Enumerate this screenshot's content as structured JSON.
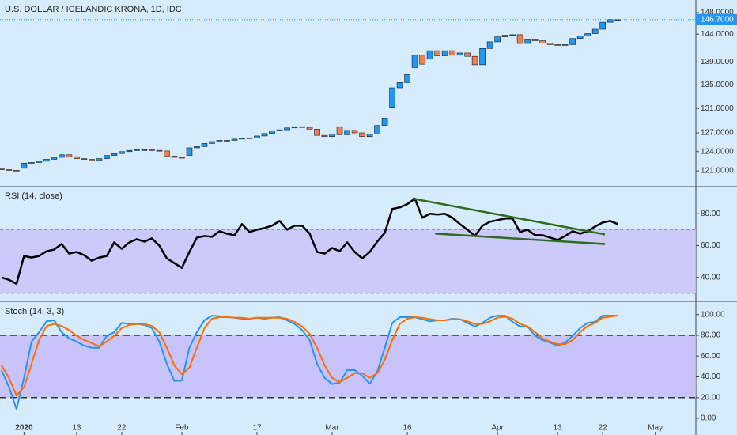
{
  "x_axis": {
    "xlim": [
      -0.2,
      92.4
    ],
    "xticks": [
      {
        "value": 3,
        "label": "2020"
      },
      {
        "value": 10,
        "label": "13"
      },
      {
        "value": 16,
        "label": "22"
      },
      {
        "value": 24,
        "label": "Feb"
      },
      {
        "value": 34,
        "label": "17"
      },
      {
        "value": 44,
        "label": "Mar"
      },
      {
        "value": 54,
        "label": "16"
      },
      {
        "value": 66,
        "label": "Apr"
      },
      {
        "value": 74,
        "label": "13"
      },
      {
        "value": 80,
        "label": "22"
      },
      {
        "value": 87,
        "label": "May"
      }
    ]
  },
  "chart_data": [
    {
      "type": "candlestick",
      "title": "U.S. DOLLAR / ICELANDIC KRONA, 1D, IDC",
      "log_scale": true,
      "ylim": [
        118.6,
        150.4
      ],
      "yticks": [
        {
          "value": 148,
          "label": "148.0000"
        },
        {
          "value": 144,
          "label": "144.0000"
        },
        {
          "value": 139,
          "label": "139.0000"
        },
        {
          "value": 135,
          "label": "135.0000"
        },
        {
          "value": 131,
          "label": "131.0000"
        },
        {
          "value": 127,
          "label": "127.0000"
        },
        {
          "value": 124,
          "label": "124.0000"
        },
        {
          "value": 121,
          "label": "121.0000"
        }
      ],
      "last_price": {
        "value": 146.7,
        "label": "146.7000"
      },
      "up_color": "#2196f3",
      "down_color": "#ef7f55",
      "price_line_color": "#2196f3",
      "open": [
        121.3,
        121.2,
        121.1,
        121.4,
        122.2,
        122.3,
        122.5,
        122.8,
        123.1,
        123.5,
        123.2,
        122.9,
        122.8,
        122.6,
        122.9,
        123.4,
        123.7,
        124.0,
        124.2,
        124.3,
        124.3,
        124.2,
        124.1,
        123.3,
        123.1,
        123.4,
        124.6,
        124.8,
        125.3,
        125.6,
        125.8,
        125.8,
        126.0,
        126.2,
        126.2,
        126.5,
        126.9,
        127.3,
        127.5,
        127.8,
        128.0,
        127.9,
        127.6,
        126.6,
        126.4,
        128.0,
        126.7,
        127.4,
        127.0,
        126.4,
        126.8,
        128.2,
        131.2,
        134.5,
        135.4,
        138.0,
        140.2,
        139.5,
        141.0,
        140.1,
        141.0,
        140.2,
        140.6,
        140.0,
        138.5,
        141.4,
        142.6,
        143.5,
        143.8,
        143.9,
        142.3,
        143.1,
        142.8,
        142.4,
        142.1,
        142.0,
        142.1,
        143.2,
        143.7,
        144.1,
        144.9,
        146.2,
        146.7
      ],
      "close": [
        121.2,
        121.1,
        121.0,
        122.2,
        122.3,
        122.5,
        122.8,
        123.1,
        123.5,
        123.2,
        122.9,
        122.8,
        122.6,
        122.9,
        123.4,
        123.7,
        124.0,
        124.2,
        124.3,
        124.3,
        124.2,
        124.1,
        123.3,
        123.1,
        123.0,
        124.6,
        124.8,
        125.3,
        125.6,
        125.8,
        125.8,
        126.0,
        126.2,
        126.2,
        126.5,
        126.9,
        127.3,
        127.5,
        127.8,
        128.0,
        127.9,
        127.6,
        126.6,
        126.4,
        126.8,
        126.7,
        127.4,
        127.0,
        126.4,
        126.8,
        128.2,
        129.4,
        134.5,
        135.4,
        136.8,
        140.2,
        138.6,
        141.0,
        140.1,
        141.0,
        140.2,
        140.6,
        140.0,
        138.5,
        141.4,
        142.6,
        143.5,
        143.8,
        143.9,
        142.3,
        143.1,
        142.8,
        142.4,
        142.1,
        142.0,
        142.1,
        143.2,
        143.7,
        144.1,
        144.9,
        146.2,
        146.7,
        146.7
      ]
    },
    {
      "type": "line",
      "title": "RSI (14, close)",
      "ylim": [
        25,
        96.5
      ],
      "yticks": [
        {
          "value": 80,
          "label": "80.00"
        },
        {
          "value": 60,
          "label": "60.00"
        },
        {
          "value": 40,
          "label": "40.00"
        }
      ],
      "band": [
        30,
        70
      ],
      "band_color": "#c8c2fa",
      "color": "#000000",
      "values": [
        40,
        38.5,
        36,
        53.5,
        52.5,
        53.5,
        56.5,
        57.5,
        61,
        55,
        56,
        54,
        50.5,
        52.5,
        53.5,
        62,
        58,
        62,
        64,
        62.5,
        64.5,
        60,
        52,
        49,
        46,
        56,
        65,
        66,
        65.5,
        69,
        67.5,
        66.5,
        73.5,
        68.5,
        70,
        71,
        72.5,
        75.5,
        70,
        72.5,
        72.5,
        67.5,
        56,
        55,
        58.5,
        56.5,
        62,
        56,
        52,
        56,
        62.5,
        68,
        83,
        84,
        86,
        89.5,
        77.5,
        80,
        79.5,
        80,
        77.5,
        73.5,
        70,
        66,
        72.5,
        75,
        76,
        77,
        77,
        68.5,
        70,
        66.5,
        66.5,
        65,
        63.5,
        66,
        69,
        67.5,
        69,
        72,
        74.5,
        75.5,
        73.5
      ],
      "trendline_color": "#2e6b1f",
      "trendlines": [
        {
          "x": [
            54.7,
            80.3
          ],
          "values": [
            89.5,
            67
          ]
        },
        {
          "x": [
            57.7,
            80.3
          ],
          "values": [
            67.5,
            61
          ]
        }
      ]
    },
    {
      "type": "line",
      "title": "Stoch (14, 3, 3)",
      "ylim": [
        -16,
        112
      ],
      "yticks": [
        {
          "value": 100,
          "label": "100.00"
        },
        {
          "value": 80,
          "label": "80.00"
        },
        {
          "value": 60,
          "label": "60.00"
        },
        {
          "value": 40,
          "label": "40.00"
        },
        {
          "value": 20,
          "label": "20.00"
        },
        {
          "value": 0,
          "label": "0.00"
        }
      ],
      "band": [
        20,
        80
      ],
      "band_color": "#c5b9fb",
      "series": [
        {
          "color": "#2196f3",
          "values": [
            46.5,
            30,
            9,
            39,
            74,
            83,
            93.5,
            94.5,
            83,
            77,
            74,
            70,
            68,
            68,
            79.5,
            83,
            92,
            91,
            91,
            90,
            87,
            74,
            52.5,
            36,
            36.5,
            68,
            83,
            94.5,
            99,
            98.5,
            97.5,
            97,
            96,
            96,
            97,
            96,
            97,
            97.5,
            94.5,
            91,
            85,
            75.5,
            52.5,
            39,
            33,
            34.5,
            46.5,
            46.5,
            41,
            33.5,
            45,
            68,
            92,
            97.5,
            97.5,
            97.5,
            95.5,
            93.5,
            94.5,
            94.5,
            96,
            95.5,
            92,
            88.5,
            92,
            97,
            99,
            99,
            93,
            88.5,
            88.5,
            79.5,
            75.5,
            73,
            70,
            73,
            79.5,
            87,
            92,
            93,
            99,
            99,
            99
          ]
        },
        {
          "color": "#ff6d00",
          "values": [
            51,
            39,
            22,
            30,
            52.5,
            75.5,
            89,
            91,
            89,
            85,
            79.5,
            75.5,
            72.5,
            69.5,
            74,
            79.5,
            87,
            90,
            91,
            91,
            89,
            83,
            68,
            51,
            42.5,
            49,
            68,
            87,
            96,
            97.5,
            97.5,
            97,
            97,
            96,
            97,
            97,
            97,
            97,
            96,
            93,
            88.5,
            81.5,
            68,
            51,
            39,
            35,
            39,
            43.5,
            43.5,
            39,
            43.5,
            56.5,
            75.5,
            91,
            96,
            97.5,
            97,
            95.5,
            94.5,
            94.5,
            95.5,
            95.5,
            93.5,
            91,
            91,
            93.5,
            97,
            98,
            96,
            91,
            88.5,
            83,
            77,
            74,
            71.5,
            71.5,
            75.5,
            83,
            89,
            92,
            97,
            98,
            99
          ]
        }
      ]
    }
  ]
}
